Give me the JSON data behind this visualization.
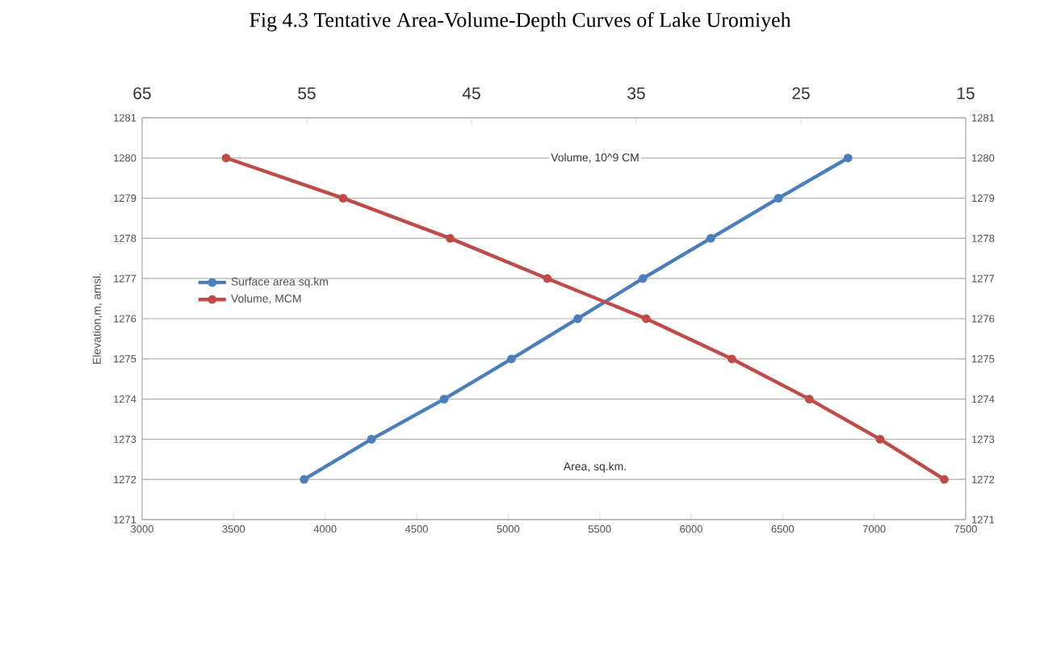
{
  "chart_data": {
    "type": "line",
    "title": "Fig 4.3 Tentative Area-Volume-Depth Curves of Lake Uromiyeh",
    "ylabel": "Elevation,m, amsl.",
    "annotations": [
      "Volume, 10^9 CM",
      "Area, sq.km."
    ],
    "xlim": [
      3000,
      7500
    ],
    "xticks": [
      3000,
      3500,
      4000,
      4500,
      5000,
      5500,
      6000,
      6500,
      7000,
      7500
    ],
    "x2lim": [
      65,
      15
    ],
    "x2ticks": [
      65,
      55,
      45,
      35,
      25,
      15
    ],
    "ylim": [
      1271,
      1281
    ],
    "yticks": [
      1271,
      1272,
      1273,
      1274,
      1275,
      1276,
      1277,
      1278,
      1279,
      1280,
      1281
    ],
    "y2lim": [
      1271,
      1281
    ],
    "y2ticks": [
      1271,
      1272,
      1273,
      1274,
      1275,
      1276,
      1277,
      1278,
      1279,
      1280,
      1281
    ],
    "grid": "y",
    "legend": "left",
    "marker": "circle",
    "line_style": "solid",
    "series": [
      {
        "name": "Surface area sq.km",
        "color": "#4a7ebb",
        "x": [
          3885,
          4253,
          4650,
          5018,
          5380,
          5736,
          6107,
          6477,
          6857
        ],
        "values": [
          1272,
          1273,
          1274,
          1275,
          1276,
          1277,
          1278,
          1279,
          1280
        ]
      },
      {
        "name": "Volume, MCM",
        "color": "#be4b48",
        "axis": "x2",
        "x": [
          59.9,
          52.8,
          46.3,
          40.4,
          34.4,
          29.2,
          24.5,
          20.2,
          16.3
        ],
        "values": [
          1280,
          1279,
          1278,
          1277,
          1276,
          1275,
          1274,
          1273,
          1272
        ]
      }
    ]
  }
}
